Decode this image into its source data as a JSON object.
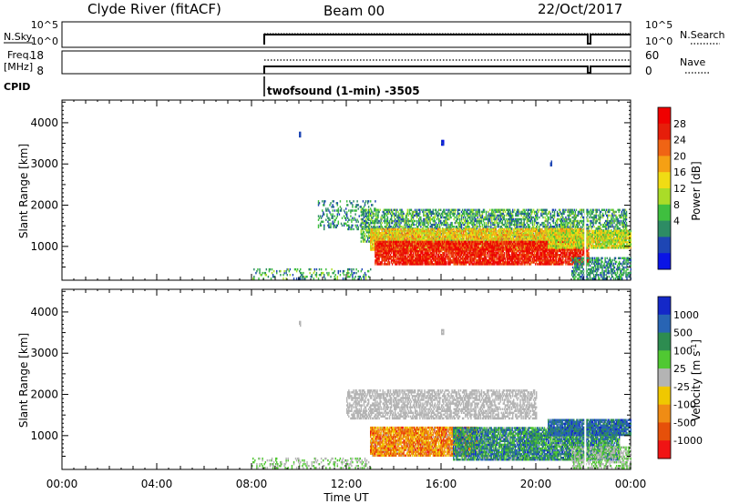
{
  "header": {
    "station": "Clyde River (fitACF)",
    "beam": "Beam 00",
    "date": "22/Oct/2017"
  },
  "top_panels": {
    "nsky": {
      "left_label": "N.Sky",
      "left_ticks": [
        "10^5",
        "10^0"
      ],
      "right_ticks": [
        "10^5",
        "10^0"
      ],
      "right_label": "N.Search"
    },
    "freq": {
      "left_label_line1": "Freq.",
      "left_label_line2": "[MHz]",
      "left_ticks": [
        "18",
        "8"
      ],
      "right_ticks": [
        "60",
        "0"
      ],
      "right_label": "Nave"
    },
    "cpid": {
      "label": "CPID",
      "program": "twofsound (1-min) -3505"
    }
  },
  "colors": {
    "power": [
      "#0a14e6",
      "#1e46b4",
      "#2d8c64",
      "#3fbf3f",
      "#aadc28",
      "#f0dc14",
      "#f5a014",
      "#f06414",
      "#e61e0a",
      "#f00000"
    ],
    "velocity": [
      "#1428c8",
      "#2864b4",
      "#2d8c50",
      "#50c832",
      "#b4b4b4",
      "#f0c800",
      "#f08c14",
      "#e6500a",
      "#f01414"
    ]
  },
  "chart_data": [
    {
      "type": "heatmap",
      "title": "",
      "ylabel": "Slant Range [km]",
      "xlabel": "",
      "xlim": [
        "00:00",
        "24:00"
      ],
      "ylim": [
        180,
        4550
      ],
      "x_ticks": [
        "00:00",
        "04:00",
        "08:00",
        "12:00",
        "16:00",
        "20:00",
        "00:00"
      ],
      "y_ticks": [
        "1000",
        "2000",
        "3000",
        "4000"
      ],
      "colorbar": {
        "label": "Power [dB]",
        "ticks": [
          "28",
          "24",
          "20",
          "16",
          "12",
          "8",
          "4"
        ],
        "range": [
          0,
          30
        ]
      },
      "observations": [
        {
          "start_ut": 8.0,
          "end_ut": 13.0,
          "range_km": [
            200,
            450
          ],
          "value_db": [
            4,
            14
          ],
          "density": "sparse"
        },
        {
          "start_ut": 10.8,
          "end_ut": 13.2,
          "range_km": [
            1400,
            2100
          ],
          "value_db": [
            4,
            12
          ],
          "density": "sparse"
        },
        {
          "start_ut": 12.6,
          "end_ut": 23.8,
          "range_km": [
            1100,
            1900
          ],
          "value_db": [
            4,
            14
          ],
          "density": "medium"
        },
        {
          "start_ut": 13.0,
          "end_ut": 22.0,
          "range_km": [
            900,
            1400
          ],
          "value_db": [
            12,
            22
          ],
          "density": "dense"
        },
        {
          "start_ut": 13.2,
          "end_ut": 22.2,
          "range_km": [
            550,
            1100
          ],
          "value_db": [
            22,
            30
          ],
          "density": "dense"
        },
        {
          "start_ut": 20.5,
          "end_ut": 24.0,
          "range_km": [
            950,
            1400
          ],
          "value_db": [
            10,
            20
          ],
          "density": "dense"
        },
        {
          "start_ut": 21.5,
          "end_ut": 24.0,
          "range_km": [
            200,
            700
          ],
          "value_db": [
            4,
            12
          ],
          "density": "medium"
        },
        {
          "start_ut": 10.0,
          "end_ut": 10.05,
          "range_km": [
            3650,
            3750
          ],
          "value_db": [
            4,
            6
          ],
          "density": "dense"
        },
        {
          "start_ut": 16.0,
          "end_ut": 16.1,
          "range_km": [
            3450,
            3550
          ],
          "value_db": [
            2,
            4
          ],
          "density": "dense"
        },
        {
          "start_ut": 20.6,
          "end_ut": 20.65,
          "range_km": [
            2950,
            3050
          ],
          "value_db": [
            4,
            6
          ],
          "density": "dense"
        }
      ]
    },
    {
      "type": "heatmap",
      "title": "",
      "ylabel": "Slant Range [km]",
      "xlabel": "Time UT",
      "xlim": [
        "00:00",
        "24:00"
      ],
      "ylim": [
        180,
        4550
      ],
      "x_ticks": [
        "00:00",
        "04:00",
        "08:00",
        "12:00",
        "16:00",
        "20:00",
        "00:00"
      ],
      "y_ticks": [
        "1000",
        "2000",
        "3000",
        "4000"
      ],
      "colorbar": {
        "label": "Velocity [m s^-1]",
        "ticks": [
          "1000",
          "500",
          "100",
          "25",
          "-25",
          "-100",
          "-500",
          "-1000"
        ],
        "range": [
          -1200,
          1200
        ]
      },
      "observations": [
        {
          "start_ut": 8.0,
          "end_ut": 13.0,
          "range_km": [
            200,
            450
          ],
          "value_ms": [
            -100,
            300
          ],
          "density": "sparse"
        },
        {
          "start_ut": 12.0,
          "end_ut": 20.0,
          "range_km": [
            1400,
            2100
          ],
          "value_ms": [
            -20,
            20
          ],
          "density": "medium"
        },
        {
          "start_ut": 13.0,
          "end_ut": 17.5,
          "range_km": [
            500,
            1200
          ],
          "value_ms": [
            -1000,
            -100
          ],
          "density": "dense"
        },
        {
          "start_ut": 16.5,
          "end_ut": 23.5,
          "range_km": [
            400,
            1200
          ],
          "value_ms": [
            100,
            1000
          ],
          "density": "dense"
        },
        {
          "start_ut": 20.5,
          "end_ut": 24.0,
          "range_km": [
            1000,
            1400
          ],
          "value_ms": [
            500,
            1000
          ],
          "density": "dense"
        },
        {
          "start_ut": 21.5,
          "end_ut": 24.0,
          "range_km": [
            200,
            700
          ],
          "value_ms": [
            -100,
            300
          ],
          "density": "medium"
        },
        {
          "start_ut": 10.0,
          "end_ut": 10.05,
          "range_km": [
            3650,
            3750
          ],
          "value_ms": [
            -50,
            -30
          ],
          "density": "dense"
        },
        {
          "start_ut": 16.0,
          "end_ut": 16.1,
          "range_km": [
            3450,
            3550
          ],
          "value_ms": [
            -10,
            10
          ],
          "density": "dense"
        }
      ]
    }
  ]
}
